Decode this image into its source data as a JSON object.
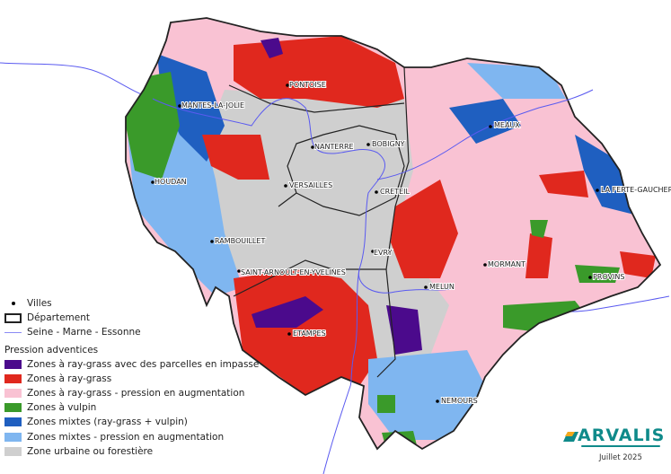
{
  "cities": [
    "PONTOISE",
    "MANTES-LA-JOLIE",
    "NANTERRE",
    "BOBIGNY",
    "HOUDAN",
    "VERSAILLES",
    "CRETEIL",
    "MEAUX",
    "LA FERTE-GAUCHER",
    "RAMBOUILLET",
    "EVRY",
    "SAINT-ARNOULT-EN-YVELINES",
    "MORMANT",
    "PROVINS",
    "MELUN",
    "ETAMPES",
    "NEMOURS"
  ],
  "legend": {
    "villes": "Villes",
    "departement": "Département",
    "rivers": "Seine - Marne - Essonne",
    "title": "Pression adventices",
    "items": [
      {
        "label": "Zones à ray-grass avec des parcelles en impasse",
        "color": "#4b0a8c"
      },
      {
        "label": "Zones à ray-grass",
        "color": "#e0281e"
      },
      {
        "label": "Zones à ray-grass - pression en augmentation",
        "color": "#f9c2d3"
      },
      {
        "label": "Zones à vulpin",
        "color": "#3a9a2a"
      },
      {
        "label": "Zones mixtes (ray-grass + vulpin)",
        "color": "#1f5fc0"
      },
      {
        "label": "Zones mixtes - pression en augmentation",
        "color": "#7fb6f0"
      },
      {
        "label": "Zone urbaine ou forestière",
        "color": "#cfcfcf"
      }
    ]
  },
  "logo": {
    "text": "ARVALIS",
    "date": "Juillet 2025"
  },
  "colors": {
    "river": "#5a5af0",
    "border": "#222222"
  }
}
